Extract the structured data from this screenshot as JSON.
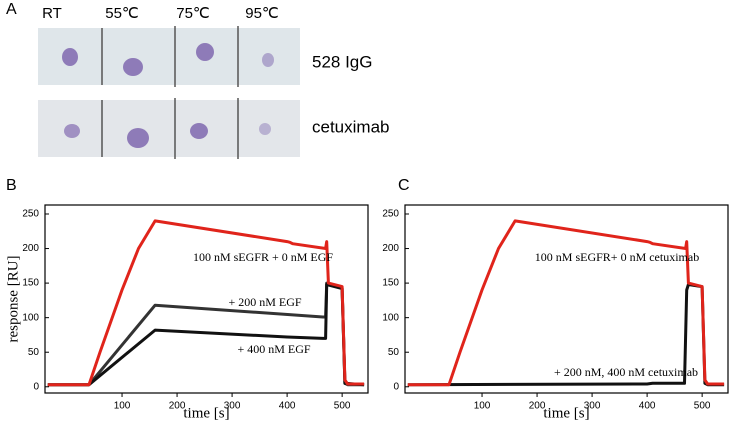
{
  "panel_labels": [
    "A",
    "B",
    "C"
  ],
  "panel_a": {
    "columns": [
      "RT",
      "55℃",
      "75℃",
      "95℃"
    ],
    "rows": [
      "528 IgG",
      "cetuximab"
    ]
  },
  "chart_data": [
    {
      "type": "line",
      "y_label": "response [RU]",
      "x_label": "time [s]",
      "xlim": [
        -40,
        547
      ],
      "ylim": [
        -9,
        263
      ],
      "xticks": [
        100,
        200,
        300,
        400,
        500
      ],
      "yticks": [
        0,
        50,
        100,
        150,
        200,
        250
      ],
      "annotations": [
        "100 nM sEGFR + 0 nM EGF",
        "+ 200 nM EGF",
        "+ 400 nM EGF"
      ],
      "series": [
        {
          "color": "#333333",
          "x": [
            -35,
            40,
            160,
            465,
            470,
            472,
            500,
            505,
            510,
            540
          ],
          "values": [
            3,
            3,
            118,
            101,
            101,
            150,
            143,
            5,
            3,
            3
          ]
        },
        {
          "color": "#111111",
          "x": [
            -35,
            40,
            160,
            400,
            465,
            470,
            472,
            500,
            505,
            540
          ],
          "values": [
            3,
            3,
            82,
            72,
            70,
            70,
            148,
            142,
            5,
            3
          ]
        },
        {
          "color": "#e0241b",
          "x": [
            -35,
            40,
            60,
            100,
            130,
            160,
            400,
            405,
            410,
            470,
            472,
            475,
            500,
            505,
            510,
            540
          ],
          "values": [
            3,
            3,
            50,
            140,
            200,
            240,
            210,
            209,
            207,
            200,
            210,
            150,
            145,
            10,
            4,
            4
          ]
        }
      ]
    },
    {
      "type": "line",
      "x_label": "time [s]",
      "xlim": [
        -40,
        547
      ],
      "ylim": [
        -9,
        263
      ],
      "xticks": [
        100,
        200,
        300,
        400,
        500
      ],
      "yticks": [
        0,
        50,
        100,
        150,
        200,
        250
      ],
      "annotations": [
        "100 nM sEGFR+ 0 nM cetuximab",
        "+ 200 nM, 400 nM cetuximab"
      ],
      "series": [
        {
          "color": "#111111",
          "x": [
            -35,
            400,
            410,
            468,
            472,
            475,
            500,
            505,
            510,
            540
          ],
          "values": [
            3,
            4,
            5,
            5,
            140,
            148,
            145,
            5,
            3,
            3
          ]
        },
        {
          "color": "#e0241b",
          "x": [
            -35,
            40,
            60,
            100,
            130,
            160,
            400,
            405,
            410,
            470,
            472,
            475,
            500,
            505,
            510,
            540
          ],
          "values": [
            3,
            3,
            50,
            140,
            200,
            240,
            210,
            209,
            207,
            200,
            210,
            150,
            145,
            10,
            4,
            4
          ]
        }
      ]
    }
  ]
}
